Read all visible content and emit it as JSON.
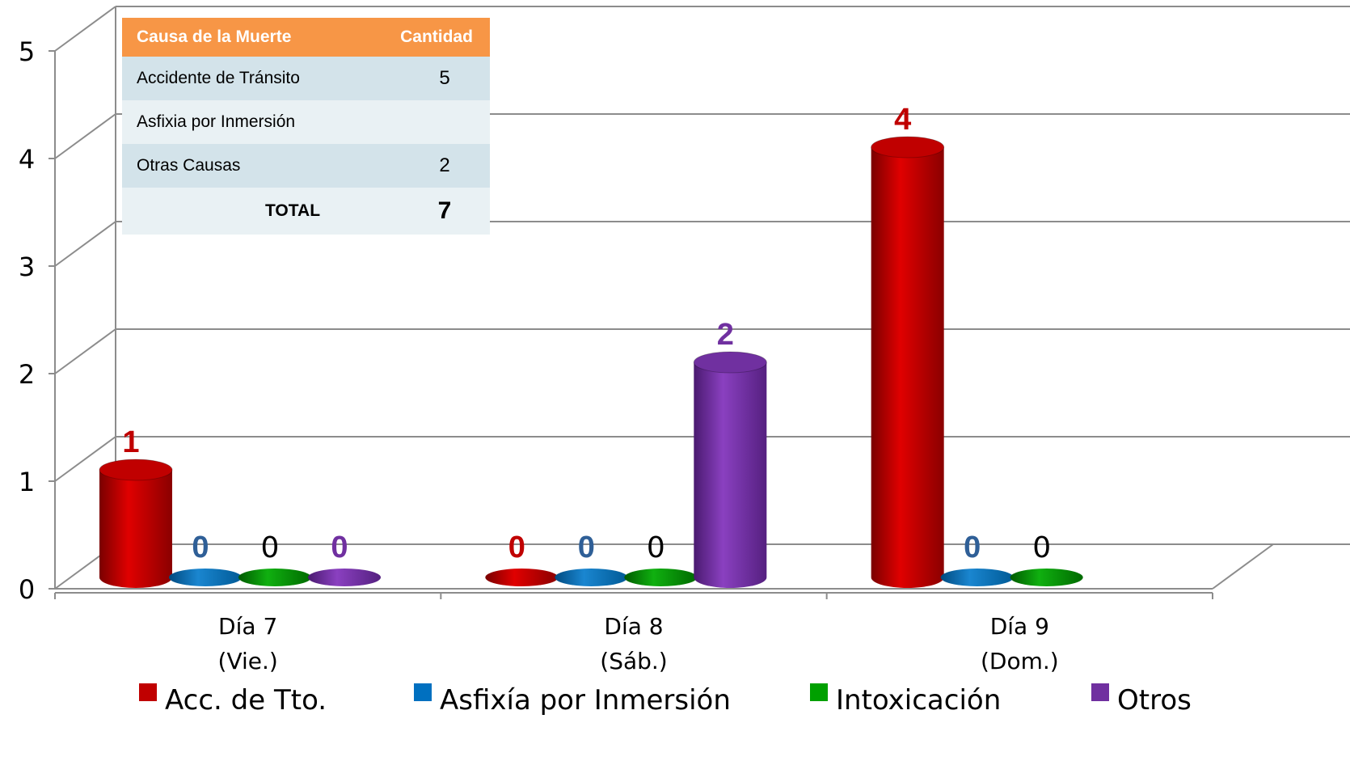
{
  "chart_data": {
    "type": "bar",
    "categories": [
      [
        "Día 7",
        "(Vie.)"
      ],
      [
        "Día 8",
        "(Sáb.)"
      ],
      [
        "Día 9",
        "(Dom.)"
      ]
    ],
    "series": [
      {
        "name": "Acc. de Tto.",
        "color": "#c00000",
        "label_color": "#c00000",
        "label_bold": true,
        "values": [
          1,
          0,
          4
        ]
      },
      {
        "name": "Asfixía por Inmersión",
        "color": "#0070c0",
        "label_color": "#2f5f97",
        "label_bold": true,
        "values": [
          0,
          0,
          0
        ]
      },
      {
        "name": "Intoxicación",
        "color": "#00a000",
        "label_color": "#000000",
        "label_bold": false,
        "values": [
          0,
          0,
          0
        ]
      },
      {
        "name": "Otros",
        "color": "#7030a0",
        "label_color": "#7030a0",
        "label_bold": true,
        "values": [
          0,
          2,
          null
        ]
      }
    ],
    "ylim": [
      0,
      5
    ],
    "yticks": [
      "0",
      "1",
      "2",
      "3",
      "4",
      "5"
    ],
    "grid": true,
    "legend_position": "bottom",
    "style": "3d-cylinder"
  },
  "summary_table": {
    "header": {
      "cause": "Causa de la Muerte",
      "qty": "Cantidad"
    },
    "rows": [
      {
        "cause": "Accidente de  Tránsito",
        "qty": "5"
      },
      {
        "cause": "Asfixia por Inmersión",
        "qty": ""
      },
      {
        "cause": "Otras  Causas",
        "qty": "2"
      }
    ],
    "total_label": "TOTAL",
    "total_value": "7"
  }
}
